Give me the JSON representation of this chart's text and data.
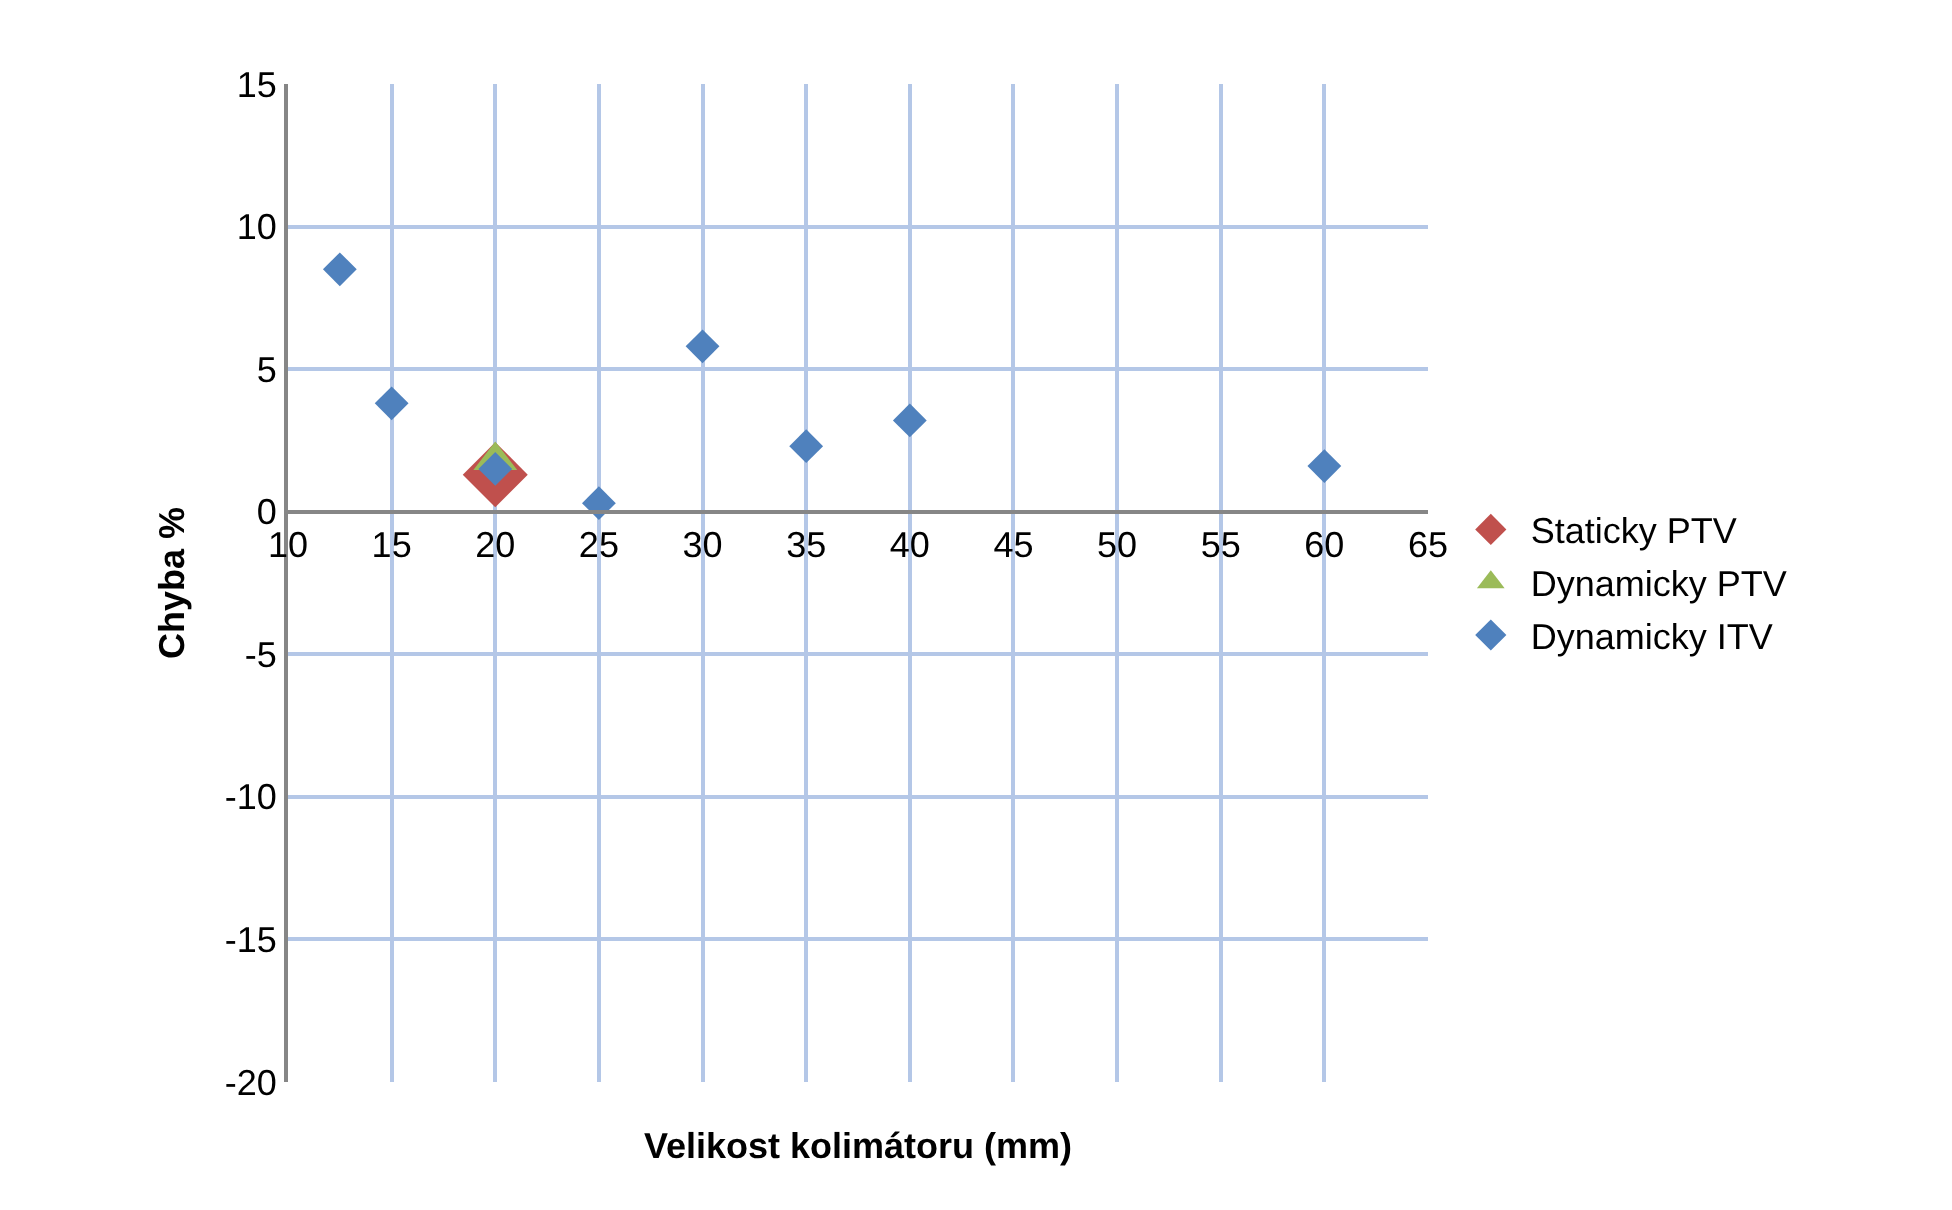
{
  "chart_data": {
    "type": "scatter",
    "xlabel": "Velikost kolimátoru (mm)",
    "ylabel": "Chyba %",
    "xlim": [
      10,
      65
    ],
    "xticks": [
      10,
      15,
      20,
      25,
      30,
      35,
      40,
      45,
      50,
      55,
      60,
      65
    ],
    "ylim": [
      -20,
      15
    ],
    "yticks": [
      -20,
      -15,
      -10,
      -5,
      0,
      5,
      10,
      15
    ],
    "grid": true,
    "legend": "right",
    "series": [
      {
        "name": "Staticky PTV",
        "color": "#c0504d",
        "marker": "diamond",
        "x": [
          20
        ],
        "values": [
          1.3
        ]
      },
      {
        "name": "Dynamicky PTV",
        "color": "#9bbb59",
        "marker": "triangle",
        "x": [
          20
        ],
        "values": [
          1.8
        ]
      },
      {
        "name": "Dynamicky ITV",
        "color": "#4f81bd",
        "marker": "diamond",
        "x": [
          12.5,
          15,
          20,
          25,
          30,
          35,
          40,
          60
        ],
        "values": [
          8.5,
          3.8,
          1.5,
          0.3,
          5.8,
          2.3,
          3.2,
          1.6
        ]
      }
    ]
  }
}
